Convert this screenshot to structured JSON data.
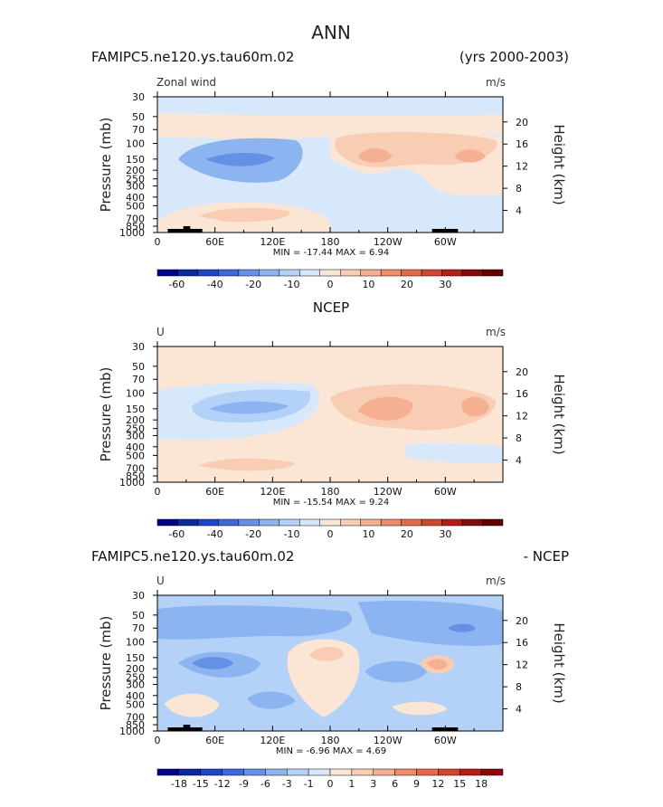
{
  "page_title": "ANN",
  "chart_data": [
    {
      "type": "heatmap",
      "left_title": "FAMIPC5.ne120.ys.tau60m.02",
      "center_title": "",
      "right_title": "(yrs 2000-2003)",
      "subtitle_left": "Zonal wind",
      "units": "m/s",
      "ylabel": "Pressure (mb)",
      "ylabel_right": "Height (km)",
      "x_ticks": [
        "0",
        "60E",
        "120E",
        "180",
        "120W",
        "60W"
      ],
      "y_ticks": [
        "30",
        "50",
        "70",
        "100",
        "150",
        "200",
        "250",
        "300",
        "400",
        "500",
        "700",
        "850",
        "1000"
      ],
      "y_ticks_right": [
        "20",
        "16",
        "12",
        "8",
        "4"
      ],
      "min_max_text": "MIN = -17.44   MAX =   6.94",
      "min": -17.44,
      "max": 6.94,
      "colorbar_levels": [
        "-60",
        "-40",
        "-20",
        "-10",
        "0",
        "10",
        "20",
        "30"
      ],
      "colorbar_colors": [
        "#00008c",
        "#0a28a0",
        "#1e46c8",
        "#3c69dc",
        "#6490e6",
        "#8cb4f0",
        "#b4d2f8",
        "#d7e8fa",
        "#fbe6d6",
        "#f8cdb4",
        "#f5af91",
        "#ef8c69",
        "#e6694b",
        "#d2462d",
        "#b41e14",
        "#870a0a",
        "#640000"
      ],
      "has_topography": true
    },
    {
      "type": "heatmap",
      "left_title": "",
      "center_title": "NCEP",
      "right_title": "",
      "subtitle_left": "U",
      "units": "m/s",
      "ylabel": "Pressure (mb)",
      "ylabel_right": "Height (km)",
      "x_ticks": [
        "0",
        "60E",
        "120E",
        "180",
        "120W",
        "60W"
      ],
      "y_ticks": [
        "30",
        "50",
        "70",
        "100",
        "150",
        "200",
        "250",
        "300",
        "400",
        "500",
        "700",
        "850",
        "1000"
      ],
      "y_ticks_right": [
        "20",
        "16",
        "12",
        "8",
        "4"
      ],
      "min_max_text": "MIN = -15.54   MAX =   9.24",
      "min": -15.54,
      "max": 9.24,
      "colorbar_levels": [
        "-60",
        "-40",
        "-20",
        "-10",
        "0",
        "10",
        "20",
        "30"
      ],
      "colorbar_colors": [
        "#00008c",
        "#0a28a0",
        "#1e46c8",
        "#3c69dc",
        "#6490e6",
        "#8cb4f0",
        "#b4d2f8",
        "#d7e8fa",
        "#fbe6d6",
        "#f8cdb4",
        "#f5af91",
        "#ef8c69",
        "#e6694b",
        "#d2462d",
        "#b41e14",
        "#870a0a",
        "#640000"
      ],
      "has_topography": false
    },
    {
      "type": "heatmap",
      "left_title": "FAMIPC5.ne120.ys.tau60m.02",
      "center_title": "",
      "right_title": "- NCEP",
      "subtitle_left": "U",
      "units": "m/s",
      "ylabel": "Pressure (mb)",
      "ylabel_right": "Height (km)",
      "x_ticks": [
        "0",
        "60E",
        "120E",
        "180",
        "120W",
        "60W"
      ],
      "y_ticks": [
        "30",
        "50",
        "70",
        "100",
        "150",
        "200",
        "250",
        "300",
        "400",
        "500",
        "700",
        "850",
        "1000"
      ],
      "y_ticks_right": [
        "20",
        "16",
        "12",
        "8",
        "4"
      ],
      "min_max_text": "MIN =  -6.96   MAX =   4.69",
      "min": -6.96,
      "max": 4.69,
      "colorbar_levels": [
        "-18",
        "-15",
        "-12",
        "-9",
        "-6",
        "-3",
        "-1",
        "0",
        "1",
        "3",
        "6",
        "9",
        "12",
        "15",
        "18"
      ],
      "colorbar_colors": [
        "#00008c",
        "#0a28a0",
        "#1e46c8",
        "#3c69dc",
        "#6490e6",
        "#8cb4f0",
        "#b4d2f8",
        "#d7e8fa",
        "#fbe6d6",
        "#f8cdb4",
        "#f5af91",
        "#ef8c69",
        "#e6694b",
        "#d2462d",
        "#b41e14",
        "#870a0a"
      ],
      "has_topography": true
    }
  ]
}
